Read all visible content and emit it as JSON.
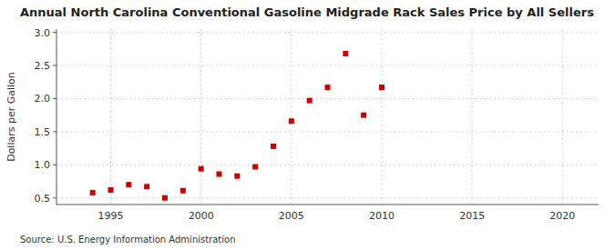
{
  "chart_data": {
    "type": "scatter",
    "title": "Annual North Carolina Conventional Gasoline Midgrade Rack Sales Price by All Sellers",
    "y_label": "Dollars per Gallon",
    "annotations": [
      "Source: U.S. Energy Information Administration"
    ],
    "x": [
      1994,
      1995,
      1996,
      1997,
      1998,
      1999,
      2000,
      2001,
      2002,
      2003,
      2004,
      2005,
      2006,
      2007,
      2008,
      2009,
      2010
    ],
    "values": [
      0.58,
      0.62,
      0.7,
      0.67,
      0.5,
      0.61,
      0.94,
      0.86,
      0.83,
      0.97,
      1.28,
      1.66,
      1.97,
      2.17,
      2.68,
      1.75,
      2.17
    ],
    "color": "#cc0000",
    "marker": "square",
    "xlim": [
      1992,
      2022
    ],
    "ylim": [
      0.4,
      3.05
    ],
    "xticks": [
      1995,
      2000,
      2005,
      2010,
      2015,
      2020
    ],
    "yticks": [
      0.5,
      {
        "value": 1.0,
        "label": "1.0"
      },
      1.5,
      {
        "value": 2.0,
        "label": "2.0"
      },
      2.5,
      {
        "value": 3.0,
        "label": "3.0"
      }
    ],
    "grid": true
  }
}
